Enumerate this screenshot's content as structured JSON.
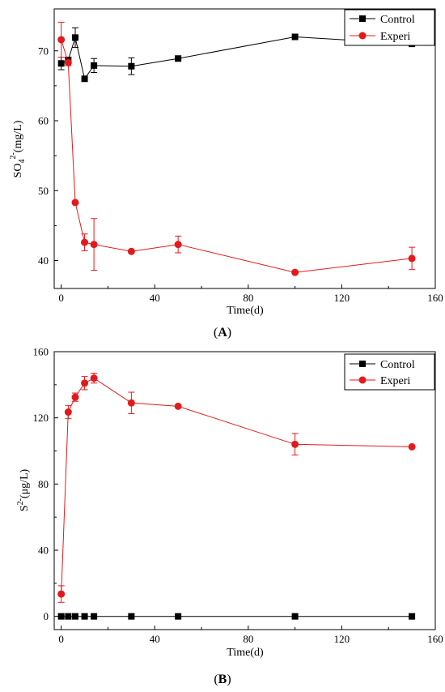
{
  "panels": [
    {
      "caption": "(A)",
      "caption_letter": "A",
      "ylabel_main": "SO",
      "ylabel_sub": "4",
      "ylabel_sup": "2-",
      "ylabel_unit": "(mg/L)",
      "xlabel": "Time(d)"
    },
    {
      "caption": "(B)",
      "caption_letter": "B",
      "ylabel_main": "S",
      "ylabel_sub": "",
      "ylabel_sup": "2-",
      "ylabel_unit": "(μg/L)",
      "xlabel": "Time(d)"
    }
  ],
  "chart_data": [
    {
      "type": "line",
      "xlabel": "Time(d)",
      "ylabel": "SO4 2-(mg/L)",
      "xlim": [
        -3,
        160
      ],
      "ylim": [
        36,
        76
      ],
      "xticks": [
        0,
        40,
        80,
        120,
        160
      ],
      "yticks": [
        40,
        50,
        60,
        70
      ],
      "legend_position": "top-right",
      "grid": false,
      "series": [
        {
          "name": "Control",
          "color": "#000000",
          "marker": "square",
          "x": [
            0,
            3,
            6,
            10,
            14,
            30,
            50,
            100,
            150
          ],
          "y": [
            68.2,
            68.7,
            71.9,
            66.0,
            67.9,
            67.8,
            68.9,
            72.0,
            71.0
          ],
          "err": [
            0.9,
            0.0,
            1.4,
            0.0,
            1.0,
            1.2,
            0.0,
            0.0,
            0.0
          ]
        },
        {
          "name": "Experi",
          "color": "#e31a1c",
          "marker": "circle",
          "x": [
            0,
            3,
            6,
            10,
            14,
            30,
            50,
            100,
            150
          ],
          "y": [
            71.6,
            68.3,
            48.3,
            42.6,
            42.3,
            41.3,
            42.3,
            38.3,
            40.3
          ],
          "err": [
            2.5,
            0.4,
            0.0,
            1.2,
            3.7,
            0.0,
            1.2,
            0.0,
            1.6
          ]
        }
      ]
    },
    {
      "type": "line",
      "xlabel": "Time(d)",
      "ylabel": "S2-(μg/L)",
      "xlim": [
        -3,
        160
      ],
      "ylim": [
        -8,
        160
      ],
      "xticks": [
        0,
        40,
        80,
        120,
        160
      ],
      "yticks": [
        0,
        40,
        80,
        120,
        160
      ],
      "legend_position": "top-right",
      "grid": false,
      "series": [
        {
          "name": "Control",
          "color": "#000000",
          "marker": "square",
          "x": [
            0,
            3,
            6,
            10,
            14,
            30,
            50,
            100,
            150
          ],
          "y": [
            0,
            0,
            0,
            0,
            0,
            0,
            0,
            0,
            0
          ],
          "err": [
            0,
            0,
            0,
            0,
            0,
            0,
            0,
            0,
            0
          ]
        },
        {
          "name": "Experi",
          "color": "#e31a1c",
          "marker": "circle",
          "x": [
            0,
            3,
            6,
            10,
            14,
            30,
            50,
            100,
            150
          ],
          "y": [
            13.5,
            123.5,
            132.5,
            141.0,
            144.0,
            129.0,
            127.0,
            104.0,
            102.5
          ],
          "err": [
            5.0,
            4.0,
            2.5,
            4.0,
            3.0,
            6.5,
            0.0,
            6.5,
            0.0
          ]
        }
      ]
    }
  ]
}
